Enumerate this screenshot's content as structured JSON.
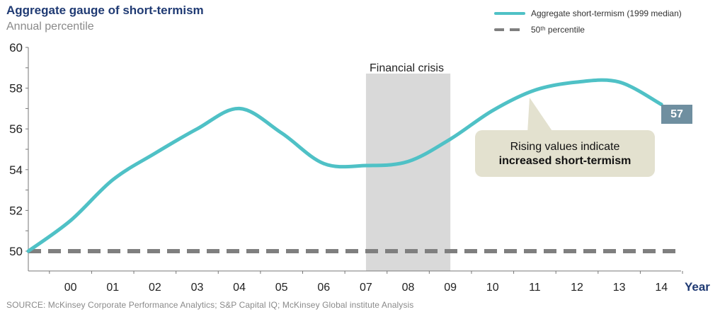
{
  "header": {
    "title": "Aggregate gauge of short-termism",
    "subtitle": "Annual percentile"
  },
  "source": "SOURCE: McKinsey Corporate Performance Analytics; S&P Capital IQ; McKinsey Global institute Analysis",
  "callout": {
    "line1": "Rising values indicate",
    "line2": "increased short-termism"
  },
  "end_label": "57",
  "chart_data": {
    "type": "line",
    "xlabel": "Year",
    "ylabel": "",
    "ylim": [
      50,
      60
    ],
    "yticks": [
      50,
      52,
      54,
      56,
      58,
      60
    ],
    "xticks": [
      "00",
      "01",
      "02",
      "03",
      "04",
      "05",
      "06",
      "07",
      "08",
      "09",
      "10",
      "11",
      "12",
      "13",
      "14"
    ],
    "grid": false,
    "legend_position": "top-right",
    "series": [
      {
        "name": "Aggregate short-termism (1999 median)",
        "color": "#4fc1c6",
        "x": [
          1999,
          2000,
          2001,
          2002,
          2003,
          2004,
          2005,
          2006,
          2007,
          2008,
          2009,
          2010,
          2011,
          2012,
          2013,
          2014
        ],
        "values": [
          50.0,
          51.5,
          53.5,
          54.8,
          56.0,
          57.0,
          55.8,
          54.3,
          54.2,
          54.4,
          55.5,
          56.9,
          57.9,
          58.3,
          58.3,
          57.2
        ]
      },
      {
        "name": "50th percentile",
        "color": "#7f7f7f",
        "dash": true,
        "x": [
          1999,
          2014
        ],
        "values": [
          50,
          50
        ]
      }
    ],
    "shaded_regions": [
      {
        "label": "Financial crisis",
        "from": 2007,
        "to": 2009,
        "color": "#d9d9d9"
      }
    ],
    "legend": [
      {
        "name": "Aggregate short-termism (1999 median)",
        "style": "line"
      },
      {
        "name": "50th percentile",
        "style": "dash",
        "display": "50ᵗʰ percentile"
      }
    ]
  }
}
